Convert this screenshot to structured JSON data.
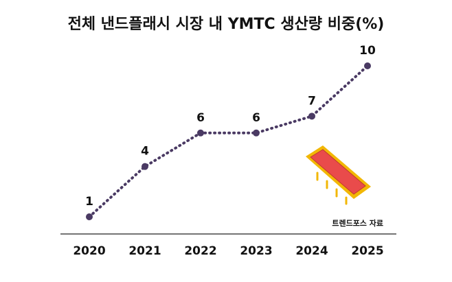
{
  "chart_data": {
    "type": "line",
    "title": "전체 낸드플래시 시장 내 YMTC 생산량 비중(%)",
    "categories": [
      "2020",
      "2021",
      "2022",
      "2023",
      "2024",
      "2025"
    ],
    "values": [
      1,
      4,
      6,
      6,
      7,
      10
    ],
    "color": "#4a3a63",
    "source": "트렌드포스 자료"
  }
}
